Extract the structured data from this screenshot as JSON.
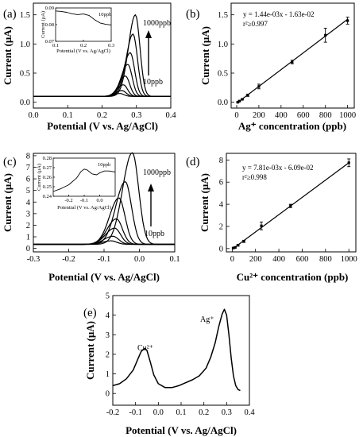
{
  "chart_data": [
    {
      "id": "a",
      "panel_label": "(a)",
      "type": "line",
      "xlabel": "Potential (V vs. Ag/AgCl)",
      "ylabel": "Current (μA)",
      "xlim": [
        0.0,
        0.4
      ],
      "ylim": [
        -0.1,
        1.7
      ],
      "xticks": [
        "0.0",
        "0.1",
        "0.2",
        "0.3",
        "0.4"
      ],
      "yticks": [
        "0.0",
        "0.5",
        "1.0",
        "1.5"
      ],
      "baseline": 0.1,
      "peaks": [
        {
          "center": 0.252,
          "height": 0.05
        },
        {
          "center": 0.258,
          "height": 0.1
        },
        {
          "center": 0.262,
          "height": 0.2
        },
        {
          "center": 0.268,
          "height": 0.35
        },
        {
          "center": 0.275,
          "height": 0.55
        },
        {
          "center": 0.282,
          "height": 0.75
        },
        {
          "center": 0.29,
          "height": 1.07
        },
        {
          "center": 0.297,
          "height": 1.4
        }
      ],
      "labels": [
        "1000ppb",
        "10ppb"
      ],
      "inset": {
        "title": "10ppb",
        "xlabel": "Potential (V vs. Ag/AgCl)",
        "ylabel": "Current (μA)",
        "xlim": [
          0.1,
          0.3
        ],
        "ylim": [
          0.07,
          0.09
        ],
        "xticks": [
          "0.1",
          "0.2",
          "0.3"
        ],
        "yticks": [
          "0.07",
          "0.08",
          "0.09"
        ],
        "x": [
          0.1,
          0.12,
          0.14,
          0.16,
          0.18,
          0.2,
          0.22,
          0.24,
          0.26,
          0.28,
          0.3
        ],
        "y": [
          0.0882,
          0.0879,
          0.0874,
          0.0865,
          0.086,
          0.0864,
          0.0855,
          0.083,
          0.081,
          0.0802,
          0.0798
        ]
      }
    },
    {
      "id": "b",
      "panel_label": "(b)",
      "type": "scatter",
      "xlabel": "Ag⁺ concentration (ppb)",
      "ylabel": "Current (μA)",
      "xlim": [
        -50,
        1060
      ],
      "ylim": [
        -0.1,
        1.7
      ],
      "xticks": [
        "0",
        "200",
        "400",
        "600",
        "800",
        "1000"
      ],
      "yticks": [
        "0.0",
        "0.5",
        "1.0",
        "1.5"
      ],
      "equation": "y = 1.44e-03x - 1.63e-02",
      "r2": "r²≥0.997",
      "x": [
        10,
        25,
        50,
        100,
        200,
        500,
        800,
        1000
      ],
      "y": [
        0.0,
        0.02,
        0.05,
        0.12,
        0.27,
        0.69,
        1.15,
        1.4
      ],
      "err": [
        0.01,
        0.01,
        0.01,
        0.02,
        0.04,
        0.03,
        0.12,
        0.06
      ]
    },
    {
      "id": "c",
      "panel_label": "(c)",
      "type": "line",
      "xlabel": "Potential (V vs. Ag/AgCl)",
      "ylabel": "Current (μA)",
      "xlim": [
        -0.3,
        0.1
      ],
      "ylim": [
        -0.3,
        8.2
      ],
      "xticks": [
        "-0.3",
        "-0.2",
        "-0.1",
        "0.0",
        "0.1"
      ],
      "yticks": [
        "0",
        "1",
        "2",
        "3",
        "4",
        "5",
        "6",
        "7",
        "8"
      ],
      "baseline": 0.35,
      "peaks": [
        {
          "center": -0.08,
          "height": 0.3
        },
        {
          "center": -0.075,
          "height": 0.7
        },
        {
          "center": -0.07,
          "height": 1.4
        },
        {
          "center": -0.065,
          "height": 2.2
        },
        {
          "center": -0.058,
          "height": 4.0
        },
        {
          "center": -0.04,
          "height": 5.4
        },
        {
          "center": -0.02,
          "height": 7.9
        }
      ],
      "labels": [
        "1000ppb",
        "10ppb"
      ],
      "inset": {
        "title": "10ppb",
        "xlabel": "Potential (V vs. Ag/AgCl)",
        "ylabel": "Current (μA)",
        "xlim": [
          -0.3,
          0.1
        ],
        "ylim": [
          0.24,
          0.28
        ],
        "xticks": [
          "-0.2",
          "-0.1",
          "0.0"
        ],
        "yticks": [
          "0.24",
          "0.25",
          "0.26",
          "0.27",
          "0.28"
        ],
        "x": [
          -0.3,
          -0.25,
          -0.2,
          -0.15,
          -0.12,
          -0.1,
          -0.08,
          -0.05,
          -0.02,
          0.0,
          0.03,
          0.06,
          0.1
        ],
        "y": [
          0.245,
          0.248,
          0.252,
          0.259,
          0.266,
          0.2685,
          0.2675,
          0.2635,
          0.2625,
          0.2645,
          0.2665,
          0.2665,
          0.2655
        ]
      }
    },
    {
      "id": "d",
      "panel_label": "(d)",
      "type": "scatter",
      "xlabel": "Cu²⁺ concentration (ppb)",
      "ylabel": "Current (μA)",
      "xlim": [
        -50,
        1060
      ],
      "ylim": [
        -0.3,
        8.6
      ],
      "xticks": [
        "0",
        "200",
        "400",
        "600",
        "800",
        "1000"
      ],
      "yticks": [
        "0",
        "2",
        "4",
        "6",
        "8"
      ],
      "equation": "y = 7.81e-03x - 6.09e-02",
      "r2": "r²≥0.998",
      "x": [
        10,
        25,
        50,
        100,
        250,
        500,
        1000
      ],
      "y": [
        0.05,
        0.1,
        0.3,
        0.65,
        2.05,
        3.85,
        7.75
      ],
      "err": [
        0.05,
        0.05,
        0.08,
        0.1,
        0.35,
        0.15,
        0.35
      ]
    },
    {
      "id": "e",
      "panel_label": "(e)",
      "type": "line",
      "xlabel": "Potential (V vs. Ag/AgCl)",
      "ylabel": "Current (μA)",
      "xlim": [
        -0.2,
        0.4
      ],
      "ylim": [
        -0.6,
        5.0
      ],
      "xticks": [
        "-0.2",
        "-0.1",
        "0.0",
        "0.1",
        "0.2",
        "0.3",
        "0.4"
      ],
      "yticks": [
        "0",
        "1",
        "2",
        "3",
        "4",
        "5"
      ],
      "x": [
        -0.2,
        -0.17,
        -0.14,
        -0.11,
        -0.09,
        -0.075,
        -0.06,
        -0.05,
        -0.035,
        -0.02,
        0.0,
        0.03,
        0.06,
        0.09,
        0.12,
        0.15,
        0.18,
        0.21,
        0.23,
        0.25,
        0.265,
        0.28,
        0.29,
        0.3,
        0.31,
        0.32,
        0.33,
        0.34,
        0.35,
        0.36
      ],
      "y": [
        0.4,
        0.5,
        0.75,
        1.2,
        1.75,
        2.15,
        2.3,
        2.2,
        1.6,
        0.95,
        0.5,
        0.3,
        0.3,
        0.4,
        0.55,
        0.7,
        0.9,
        1.3,
        1.85,
        2.6,
        3.4,
        4.05,
        4.3,
        4.0,
        3.0,
        1.8,
        0.9,
        0.4,
        0.2,
        0.15
      ],
      "annotations": [
        {
          "text": "Cu²⁺",
          "x": -0.06,
          "y": 2.7
        },
        {
          "text": "Ag⁺",
          "x": 0.25,
          "y": 4.6
        }
      ]
    }
  ]
}
